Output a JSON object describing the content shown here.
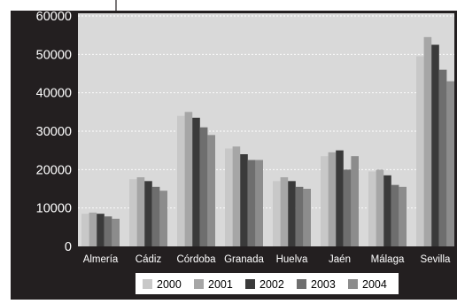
{
  "chart_data": {
    "type": "bar",
    "title": "",
    "xlabel": "",
    "ylabel": "",
    "categories": [
      "Almería",
      "Cádiz",
      "Córdoba",
      "Granada",
      "Huelva",
      "Jaén",
      "Málaga",
      "Sevilla"
    ],
    "ylim": [
      0,
      60000
    ],
    "yticks": [
      0,
      10000,
      20000,
      30000,
      40000,
      50000,
      60000
    ],
    "ytick_labels": [
      "0",
      "10000",
      "20000",
      "30000",
      "40000",
      "50000",
      "60000"
    ],
    "grid": true,
    "legend_position": "bottom",
    "series": [
      {
        "name": "2000",
        "color": "#c8c8c8",
        "values": [
          8500,
          17500,
          34000,
          25500,
          17000,
          23500,
          19500,
          49500
        ]
      },
      {
        "name": "2001",
        "color": "#a6a6a6",
        "values": [
          8800,
          18000,
          35000,
          26000,
          18000,
          24500,
          20000,
          54500
        ]
      },
      {
        "name": "2002",
        "color": "#3a3a3a",
        "values": [
          8500,
          17000,
          33500,
          24000,
          17000,
          25000,
          18500,
          52500
        ]
      },
      {
        "name": "2003",
        "color": "#6e6e6e",
        "values": [
          7800,
          15500,
          31000,
          22500,
          15500,
          20000,
          16000,
          46000
        ]
      },
      {
        "name": "2004",
        "color": "#8c8c8c",
        "values": [
          7200,
          14500,
          29000,
          22500,
          15000,
          23500,
          15500,
          43000
        ]
      }
    ],
    "colors": {
      "background": "#231f20",
      "plot_area": "#d9d9d9",
      "gridline": "#ffffff",
      "text": "#ffffff",
      "legend_box": "#ffffff",
      "legend_text": "#000000"
    }
  }
}
